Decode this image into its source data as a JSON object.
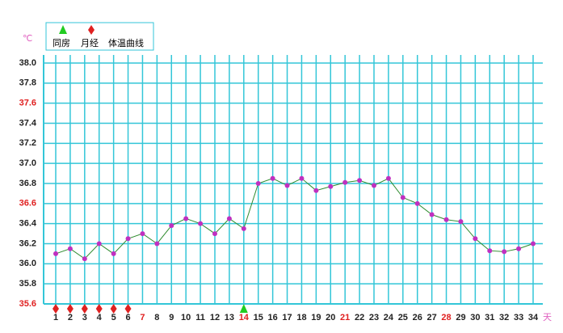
{
  "chart_data": {
    "type": "line",
    "y_unit": "℃",
    "x_unit": "天",
    "x": [
      1,
      2,
      3,
      4,
      5,
      6,
      7,
      8,
      9,
      10,
      11,
      12,
      13,
      14,
      15,
      16,
      17,
      18,
      19,
      20,
      21,
      22,
      23,
      24,
      25,
      26,
      27,
      28,
      29,
      30,
      31,
      32,
      33,
      34
    ],
    "xlim": [
      1,
      34
    ],
    "xticks": [
      1,
      2,
      3,
      4,
      5,
      6,
      7,
      8,
      9,
      10,
      11,
      12,
      13,
      14,
      15,
      16,
      17,
      18,
      19,
      20,
      21,
      22,
      23,
      24,
      25,
      26,
      27,
      28,
      29,
      30,
      31,
      32,
      33,
      34
    ],
    "xtick_colors": [
      "#222",
      "#222",
      "#222",
      "#222",
      "#222",
      "#222",
      "#e02020",
      "#222",
      "#222",
      "#222",
      "#222",
      "#222",
      "#222",
      "#e02020",
      "#222",
      "#222",
      "#222",
      "#222",
      "#222",
      "#222",
      "#e02020",
      "#222",
      "#222",
      "#222",
      "#222",
      "#222",
      "#222",
      "#e02020",
      "#222",
      "#222",
      "#222",
      "#222",
      "#222",
      "#222"
    ],
    "ylim": [
      35.6,
      38.0
    ],
    "yticks": [
      35.6,
      35.8,
      {
        "value": 36,
        "label": "36.0"
      },
      36.2,
      36.4,
      36.6,
      36.8,
      {
        "value": 37,
        "label": "37.0"
      },
      37.2,
      37.4,
      37.6,
      37.8,
      {
        "value": 38,
        "label": "38.0"
      }
    ],
    "ytick_colors": [
      "#e02020",
      "#222",
      "#222",
      "#222",
      "#222",
      "#e02020",
      "#222",
      "#222",
      "#222",
      "#222",
      "#e02020",
      "#222",
      "#222"
    ],
    "grid": true,
    "grid_color": "#33c6d8",
    "series": [
      {
        "name": "体温曲线",
        "color": "#2e8b2e",
        "marker_color": "#c030c0",
        "values": [
          36.1,
          36.15,
          36.05,
          36.2,
          36.1,
          36.25,
          36.3,
          36.2,
          36.38,
          36.45,
          36.4,
          36.3,
          36.45,
          36.35,
          36.8,
          36.85,
          36.78,
          36.85,
          36.73,
          36.77,
          36.81,
          36.83,
          36.78,
          36.85,
          36.66,
          36.6,
          36.49,
          36.44,
          36.42,
          36.25,
          36.13,
          36.12,
          36.15,
          36.2
        ]
      }
    ],
    "events": [
      {
        "name": "同房",
        "color": "#22cc22",
        "shape": "triangle",
        "x": [
          14
        ]
      },
      {
        "name": "月经",
        "color": "#e02020",
        "shape": "diamond",
        "x": [
          1,
          2,
          3,
          4,
          5,
          6
        ]
      }
    ]
  }
}
